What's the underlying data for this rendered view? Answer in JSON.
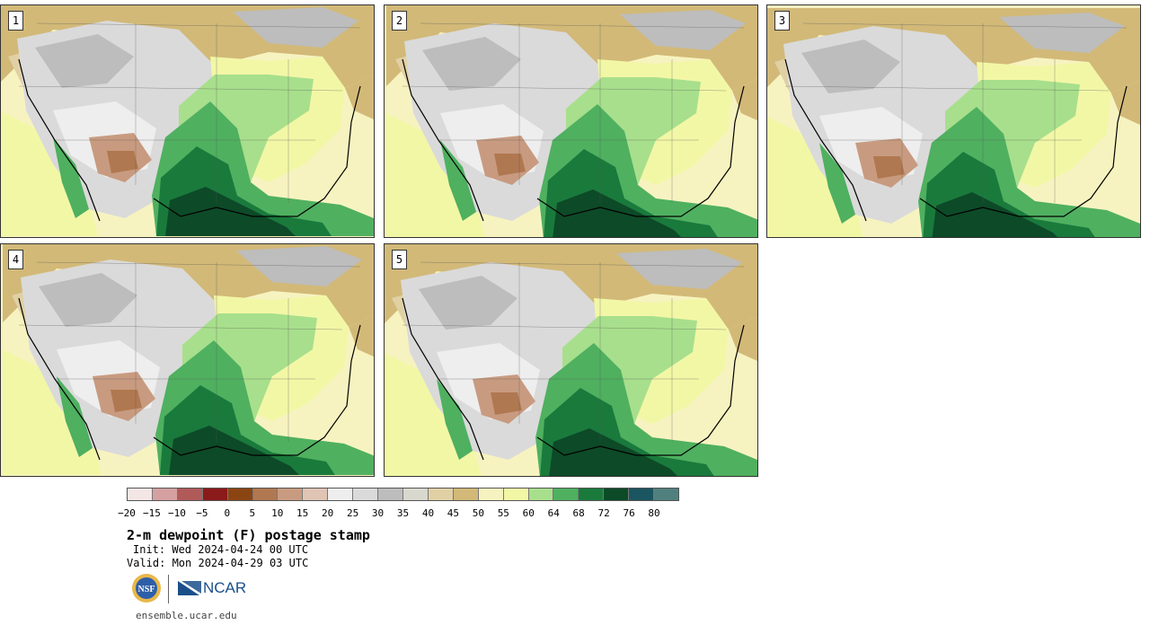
{
  "panels": [
    {
      "label": "1"
    },
    {
      "label": "2"
    },
    {
      "label": "3"
    },
    {
      "label": "4"
    },
    {
      "label": "5"
    }
  ],
  "colorbar": {
    "colors": [
      "#f5e6e6",
      "#d4a0a0",
      "#b05a5a",
      "#8b1a1a",
      "#8b4513",
      "#b07850",
      "#c89b80",
      "#e0c4b4",
      "#eeeeee",
      "#dadada",
      "#bdbdbd",
      "#d8d8cf",
      "#e0d0a4",
      "#d2b978",
      "#f7f3c0",
      "#f2f7a6",
      "#a8df8c",
      "#4fb060",
      "#1a7a3c",
      "#0d4a28",
      "#1a5560",
      "#50807e"
    ],
    "ticks": [
      "−20",
      "−15",
      "−10",
      "−5",
      "0",
      "5",
      "10",
      "15",
      "20",
      "25",
      "30",
      "35",
      "40",
      "45",
      "50",
      "55",
      "60",
      "64",
      "68",
      "72",
      "76",
      "80"
    ]
  },
  "title": "2-m dewpoint (F) postage stamp",
  "init": "Init: Wed 2024-04-24 00 UTC",
  "valid": "Valid: Mon 2024-04-29 03 UTC",
  "logos": {
    "nsf": "NSF",
    "ncar": "NCAR"
  },
  "url": "ensemble.ucar.edu"
}
